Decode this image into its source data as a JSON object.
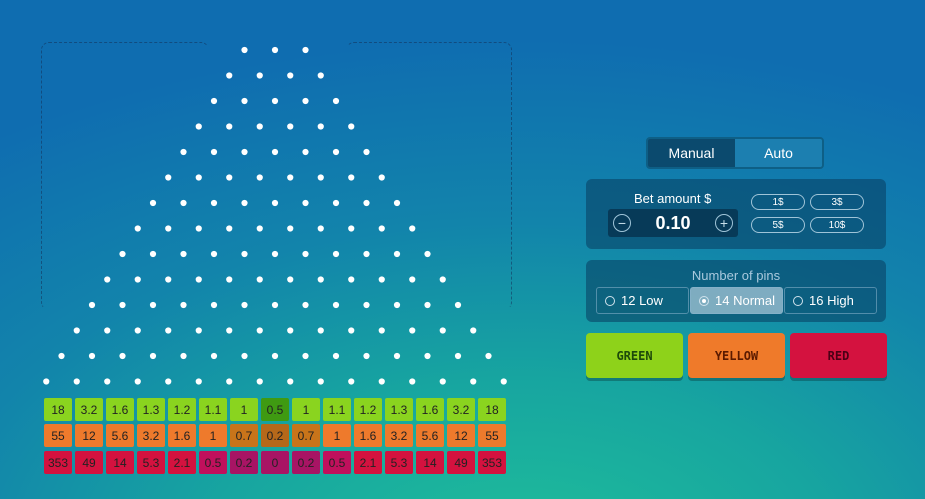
{
  "mode_tabs": {
    "manual": "Manual",
    "auto": "Auto",
    "active": "Manual"
  },
  "bet": {
    "label": "Bet amount $",
    "value": "0.10",
    "minus": "−",
    "plus": "+",
    "chips": [
      "1$",
      "3$",
      "5$",
      "10$"
    ]
  },
  "pins": {
    "label": "Number of pins",
    "options": [
      "12 Low",
      "14 Normal",
      "16 High"
    ],
    "selected": "14 Normal"
  },
  "color_buttons": {
    "green": "GREEN",
    "yellow": "YELLOW",
    "red": "RED"
  },
  "board": {
    "pin_rows": 14,
    "multipliers": {
      "green": [
        "18",
        "3.2",
        "1.6",
        "1.3",
        "1.2",
        "1.1",
        "1",
        "0.5",
        "1",
        "1.1",
        "1.2",
        "1.3",
        "1.6",
        "3.2",
        "18"
      ],
      "yellow": [
        "55",
        "12",
        "5.6",
        "3.2",
        "1.6",
        "1",
        "0.7",
        "0.2",
        "0.7",
        "1",
        "1.6",
        "3.2",
        "5.6",
        "12",
        "55"
      ],
      "red": [
        "353",
        "49",
        "14",
        "5.3",
        "2.1",
        "0.5",
        "0.2",
        "0",
        "0.2",
        "0.5",
        "2.1",
        "5.3",
        "14",
        "49",
        "353"
      ]
    }
  },
  "colors": {
    "green_btn": "#8ed21a",
    "yellow_btn": "#ef7a2a",
    "red_btn": "#d4123f",
    "green_text": "#1d4a0a",
    "yellow_text": "#5a1a00",
    "red_text": "#4a0015"
  }
}
